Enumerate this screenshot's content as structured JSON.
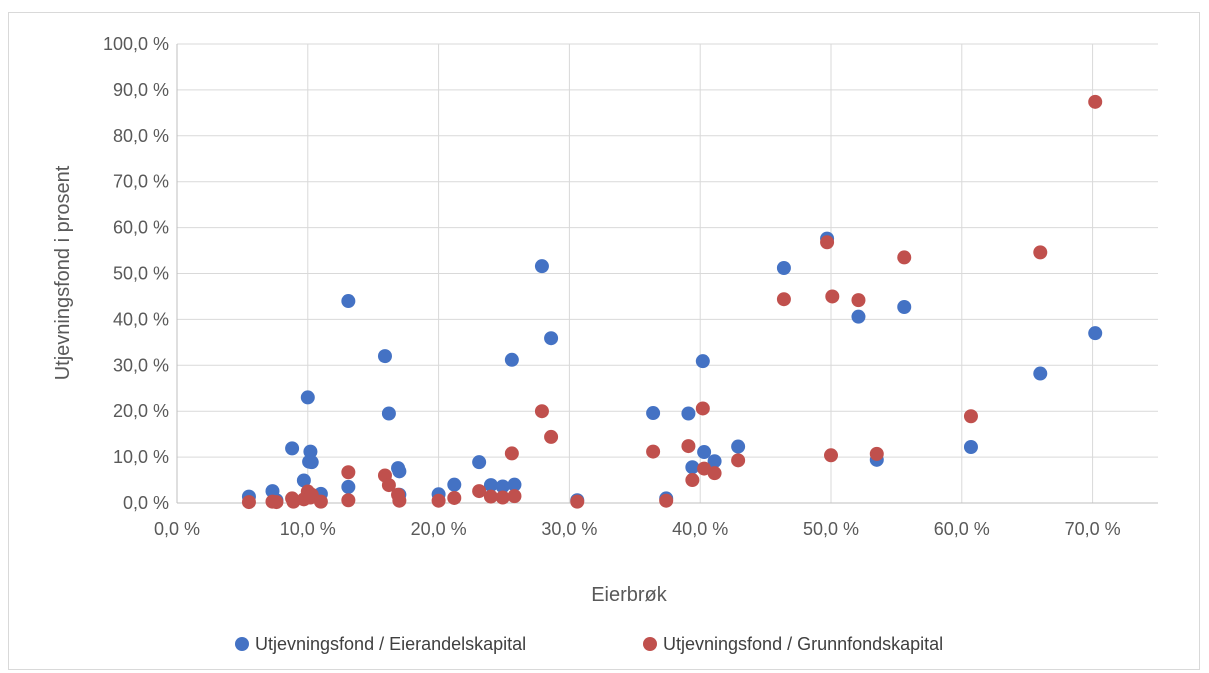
{
  "chart_data": {
    "type": "scatter",
    "title": "",
    "xlabel": "Eierbrøk",
    "ylabel": "Utjevningsfond i prosent",
    "xlim": [
      0,
      75
    ],
    "ylim": [
      0,
      100
    ],
    "x_ticks": [
      0,
      10,
      20,
      30,
      40,
      50,
      60,
      70
    ],
    "y_ticks": [
      0,
      10,
      20,
      30,
      40,
      50,
      60,
      70,
      80,
      90,
      100
    ],
    "x_tick_labels": [
      "0,0 %",
      "10,0 %",
      "20,0 %",
      "30,0 %",
      "40,0 %",
      "50,0 %",
      "60,0 %",
      "70,0 %"
    ],
    "y_tick_labels": [
      "0,0 %",
      "10,0 %",
      "20,0 %",
      "30,0 %",
      "40,0 %",
      "50,0 %",
      "60,0 %",
      "70,0 %",
      "80,0 %",
      "90,0 %",
      "100,0 %"
    ],
    "grid": "horizontal and vertical",
    "legend_position": "bottom",
    "series": [
      {
        "name": "Utjevningsfond / Eierandelskapital",
        "color": "#4472c4",
        "points": [
          [
            5.5,
            1.4
          ],
          [
            7.3,
            2.6
          ],
          [
            7.6,
            0.6
          ],
          [
            8.8,
            11.9
          ],
          [
            9.7,
            4.9
          ],
          [
            10.0,
            23.0
          ],
          [
            10.1,
            9.0
          ],
          [
            10.2,
            11.2
          ],
          [
            10.3,
            8.9
          ],
          [
            11.0,
            2.0
          ],
          [
            13.1,
            3.5
          ],
          [
            13.1,
            44.0
          ],
          [
            15.9,
            32.0
          ],
          [
            16.2,
            19.5
          ],
          [
            16.9,
            7.6
          ],
          [
            17.0,
            6.9
          ],
          [
            17.0,
            1.8
          ],
          [
            20.0,
            1.9
          ],
          [
            21.2,
            4.0
          ],
          [
            23.1,
            8.9
          ],
          [
            24.0,
            3.9
          ],
          [
            24.9,
            3.6
          ],
          [
            25.6,
            31.2
          ],
          [
            25.8,
            4.0
          ],
          [
            27.9,
            51.6
          ],
          [
            28.6,
            35.9
          ],
          [
            30.6,
            0.6
          ],
          [
            36.4,
            19.6
          ],
          [
            37.4,
            1.0
          ],
          [
            39.1,
            19.5
          ],
          [
            39.4,
            7.8
          ],
          [
            40.2,
            30.9
          ],
          [
            40.3,
            11.1
          ],
          [
            41.1,
            9.1
          ],
          [
            42.9,
            12.3
          ],
          [
            46.4,
            51.2
          ],
          [
            49.7,
            57.6
          ],
          [
            52.1,
            40.6
          ],
          [
            53.5,
            9.4
          ],
          [
            55.6,
            42.7
          ],
          [
            60.7,
            12.2
          ],
          [
            66.0,
            28.2
          ],
          [
            70.2,
            37.0
          ]
        ]
      },
      {
        "name": "Utjevningsfond / Grunnfondskapital",
        "color": "#c0504d",
        "points": [
          [
            5.5,
            0.2
          ],
          [
            7.3,
            0.3
          ],
          [
            7.6,
            0.2
          ],
          [
            8.8,
            1.0
          ],
          [
            8.9,
            0.3
          ],
          [
            9.7,
            0.8
          ],
          [
            10.0,
            2.5
          ],
          [
            10.2,
            1.2
          ],
          [
            10.3,
            1.8
          ],
          [
            11.0,
            0.3
          ],
          [
            13.1,
            6.7
          ],
          [
            13.1,
            0.6
          ],
          [
            15.9,
            6.0
          ],
          [
            16.2,
            3.9
          ],
          [
            16.9,
            1.8
          ],
          [
            17.0,
            0.5
          ],
          [
            20.0,
            0.5
          ],
          [
            21.2,
            1.1
          ],
          [
            23.1,
            2.6
          ],
          [
            24.0,
            1.4
          ],
          [
            24.9,
            1.2
          ],
          [
            25.6,
            10.8
          ],
          [
            25.8,
            1.5
          ],
          [
            27.9,
            20.0
          ],
          [
            28.6,
            14.4
          ],
          [
            30.6,
            0.3
          ],
          [
            36.4,
            11.2
          ],
          [
            37.4,
            0.5
          ],
          [
            39.1,
            12.4
          ],
          [
            39.4,
            5.0
          ],
          [
            40.2,
            20.6
          ],
          [
            40.3,
            7.5
          ],
          [
            41.1,
            6.5
          ],
          [
            42.9,
            9.3
          ],
          [
            46.4,
            44.4
          ],
          [
            49.7,
            56.8
          ],
          [
            50.0,
            10.4
          ],
          [
            50.1,
            45.0
          ],
          [
            52.1,
            44.2
          ],
          [
            53.5,
            10.7
          ],
          [
            55.6,
            53.5
          ],
          [
            60.7,
            18.9
          ],
          [
            66.0,
            54.6
          ],
          [
            70.2,
            87.4
          ]
        ]
      }
    ]
  }
}
